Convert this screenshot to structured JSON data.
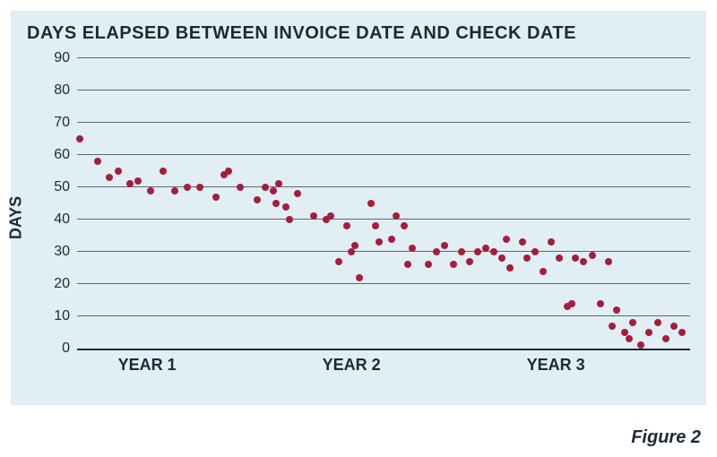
{
  "chart": {
    "type": "scatter",
    "title": "DAYS ELAPSED BETWEEN INVOICE DATE AND CHECK DATE",
    "title_fontsize": 20,
    "title_color": "#1a2a3a",
    "background_color": "#e1eef3",
    "grid_color": "#5a6a72",
    "axis_color": "#1a2a3a",
    "text_color": "#1a2a3a",
    "marker_color": "#a41e3c",
    "marker_size": 8,
    "ylabel": "DAYS",
    "ylabel_fontsize": 18,
    "ylim": [
      0,
      90
    ],
    "ytick_step": 10,
    "ytick_fontsize": 16,
    "xlim": [
      0,
      75
    ],
    "xticks": [
      {
        "pos": 5,
        "label": "YEAR 1"
      },
      {
        "pos": 30,
        "label": "YEAR 2"
      },
      {
        "pos": 55,
        "label": "YEAR 3"
      }
    ],
    "xtick_fontsize": 18,
    "points": [
      [
        0.3,
        65
      ],
      [
        2.5,
        58
      ],
      [
        4,
        53
      ],
      [
        5,
        55
      ],
      [
        6.5,
        51
      ],
      [
        7.5,
        52
      ],
      [
        9,
        49
      ],
      [
        10.5,
        55
      ],
      [
        12,
        49
      ],
      [
        13.5,
        50
      ],
      [
        15,
        50
      ],
      [
        17,
        47
      ],
      [
        18,
        54
      ],
      [
        18.5,
        55
      ],
      [
        20,
        50
      ],
      [
        22,
        46
      ],
      [
        23,
        50
      ],
      [
        24,
        49
      ],
      [
        24.3,
        45
      ],
      [
        24.7,
        51
      ],
      [
        25.5,
        44
      ],
      [
        26,
        40
      ],
      [
        27,
        48
      ],
      [
        29,
        41
      ],
      [
        30.5,
        40
      ],
      [
        31,
        41
      ],
      [
        32,
        27
      ],
      [
        33,
        38
      ],
      [
        33.5,
        30
      ],
      [
        34,
        32
      ],
      [
        34.5,
        22
      ],
      [
        36,
        45
      ],
      [
        36.5,
        38
      ],
      [
        37,
        33
      ],
      [
        38.5,
        34
      ],
      [
        39,
        41
      ],
      [
        40,
        38
      ],
      [
        40.5,
        26
      ],
      [
        41,
        31
      ],
      [
        43,
        26
      ],
      [
        44,
        30
      ],
      [
        45,
        32
      ],
      [
        46,
        26
      ],
      [
        47,
        30
      ],
      [
        48,
        27
      ],
      [
        49,
        30
      ],
      [
        50,
        31
      ],
      [
        51,
        30
      ],
      [
        52,
        28
      ],
      [
        52.5,
        34
      ],
      [
        53,
        25
      ],
      [
        54.5,
        33
      ],
      [
        55,
        28
      ],
      [
        56,
        30
      ],
      [
        57,
        24
      ],
      [
        58,
        33
      ],
      [
        59,
        28
      ],
      [
        60,
        13
      ],
      [
        60.5,
        14
      ],
      [
        61,
        28
      ],
      [
        62,
        27
      ],
      [
        63,
        29
      ],
      [
        64,
        14
      ],
      [
        65,
        27
      ],
      [
        65.5,
        7
      ],
      [
        66,
        12
      ],
      [
        67,
        5
      ],
      [
        67.5,
        3
      ],
      [
        68,
        8
      ],
      [
        69,
        1
      ],
      [
        70,
        5
      ],
      [
        71,
        8
      ],
      [
        72,
        3
      ],
      [
        73,
        7
      ],
      [
        74,
        5
      ]
    ]
  },
  "caption": "Figure 2",
  "caption_fontsize": 20,
  "caption_color": "#1a2a3a"
}
